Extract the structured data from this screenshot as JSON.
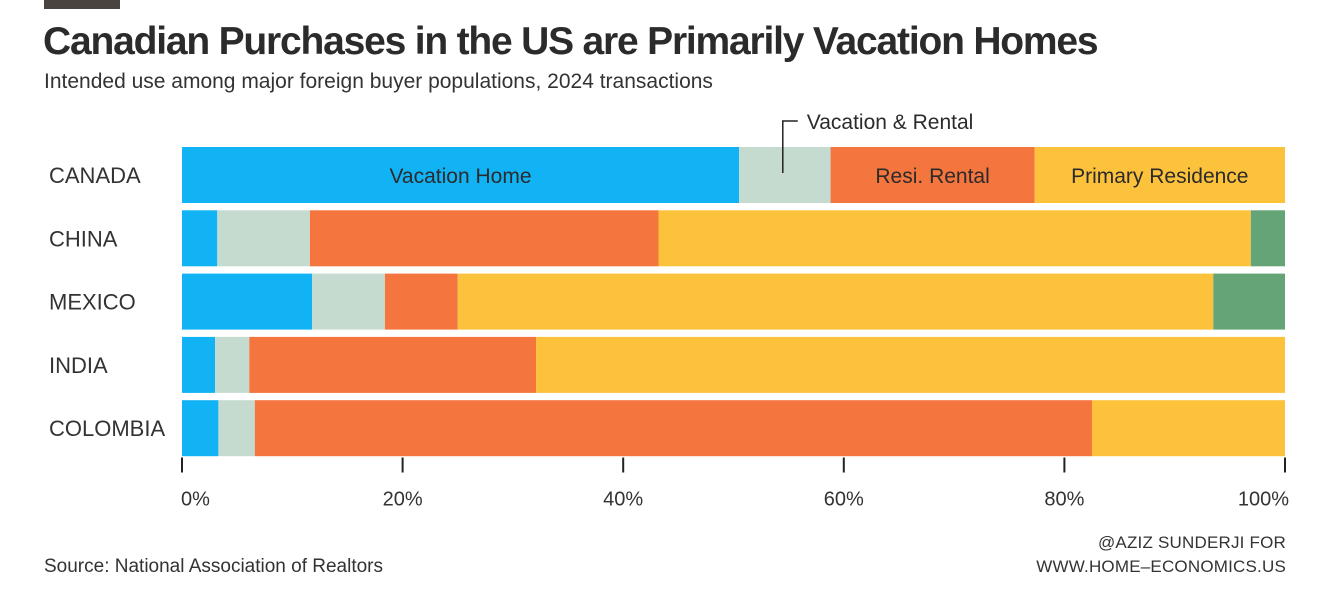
{
  "title": "Canadian Purchases in the US are Primarily Vacation Homes",
  "subtitle": "Intended use among major foreign buyer populations, 2024 transactions",
  "source": "Source: National Association of Realtors",
  "credit_line1": "@AZIZ SUNDERJI FOR",
  "credit_line2": "WWW.HOME–ECONOMICS.US",
  "chart_data": {
    "type": "bar",
    "orientation": "horizontal",
    "stacked": true,
    "categories": [
      "CANADA",
      "CHINA",
      "MEXICO",
      "INDIA",
      "COLOMBIA"
    ],
    "series": [
      {
        "name": "Vacation Home",
        "color": "#12b3f5",
        "values": [
          50.5,
          3.2,
          11.8,
          3.0,
          3.3
        ]
      },
      {
        "name": "Vacation & Rental",
        "color": "#c5dbcf",
        "values": [
          8.3,
          8.4,
          6.6,
          3.1,
          3.3
        ]
      },
      {
        "name": "Resi. Rental",
        "color": "#f4753e",
        "values": [
          18.5,
          31.6,
          6.6,
          26.0,
          75.9
        ]
      },
      {
        "name": "Primary Residence",
        "color": "#fdc23c",
        "values": [
          22.7,
          53.7,
          68.5,
          67.9,
          17.5
        ]
      },
      {
        "name": "",
        "color": "#64a477",
        "values": [
          0,
          3.1,
          6.5,
          0,
          0
        ]
      }
    ],
    "xlim": [
      0,
      100
    ],
    "x_ticks": [
      "0%",
      "20%",
      "40%",
      "60%",
      "80%",
      "100%"
    ],
    "grid": false
  }
}
